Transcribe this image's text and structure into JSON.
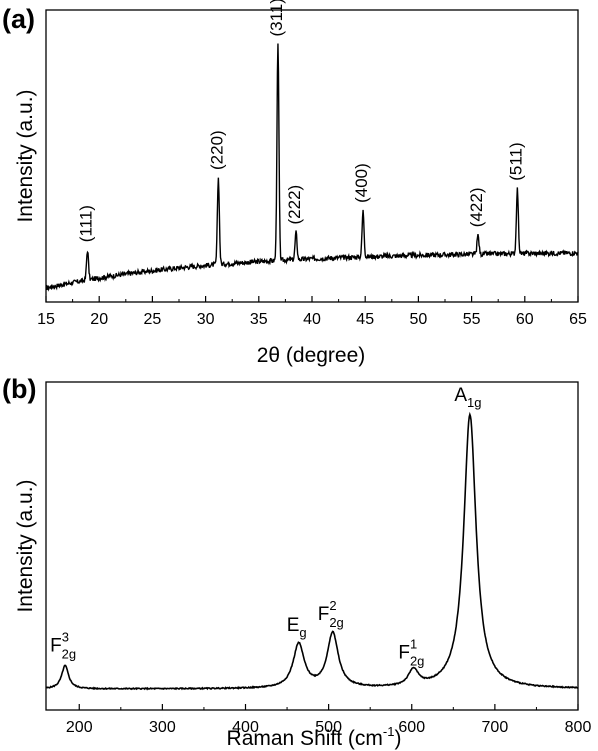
{
  "chart_data": [
    {
      "panel": "(a)",
      "type": "line",
      "xlabel": "2θ (degree)",
      "ylabel": "Intensity (a.u.)",
      "xlim": [
        15,
        65
      ],
      "xticks": [
        15,
        20,
        25,
        30,
        35,
        40,
        45,
        50,
        55,
        60,
        65
      ],
      "yticks": [],
      "background": {
        "start": [
          15,
          0.0
        ],
        "end": [
          65,
          0.13
        ],
        "shape": "rising-then-flattening"
      },
      "series": [
        {
          "peaks": [
            {
              "x": 18.9,
              "height": 0.11,
              "label": "(111)"
            },
            {
              "x": 31.2,
              "height": 0.32,
              "label": "(220)"
            },
            {
              "x": 36.8,
              "height": 0.8,
              "label": "(311)"
            },
            {
              "x": 38.5,
              "height": 0.1,
              "label": "(222)"
            },
            {
              "x": 44.8,
              "height": 0.17,
              "label": "(400)"
            },
            {
              "x": 55.6,
              "height": 0.07,
              "label": "(422)"
            },
            {
              "x": 59.3,
              "height": 0.24,
              "label": "(511)"
            }
          ]
        }
      ]
    },
    {
      "panel": "(b)",
      "type": "line",
      "xlabel": "Raman Shift (cm",
      "xlabel_sup": "-1",
      "xlabel_end": ")",
      "ylabel": "Intensity (a.u.)",
      "xlim": [
        160,
        800
      ],
      "xticks": [
        200,
        300,
        400,
        500,
        600,
        700,
        800
      ],
      "yticks": [],
      "baseline": 0.0,
      "series": [
        {
          "peaks": [
            {
              "x": 183,
              "height": 0.085,
              "label_main": "F",
              "label_sup": "3",
              "label_sub": "2g"
            },
            {
              "x": 464,
              "height": 0.16,
              "label_main": "E",
              "label_sup": "",
              "label_sub": "g"
            },
            {
              "x": 505,
              "height": 0.2,
              "label_main": "F",
              "label_sup": "2",
              "label_sub": "2g"
            },
            {
              "x": 602,
              "height": 0.06,
              "label_main": "F",
              "label_sup": "1",
              "label_sub": "2g"
            },
            {
              "x": 670,
              "height": 1.0,
              "label_main": "A",
              "label_sup": "",
              "label_sub": "1g"
            }
          ]
        }
      ]
    }
  ]
}
